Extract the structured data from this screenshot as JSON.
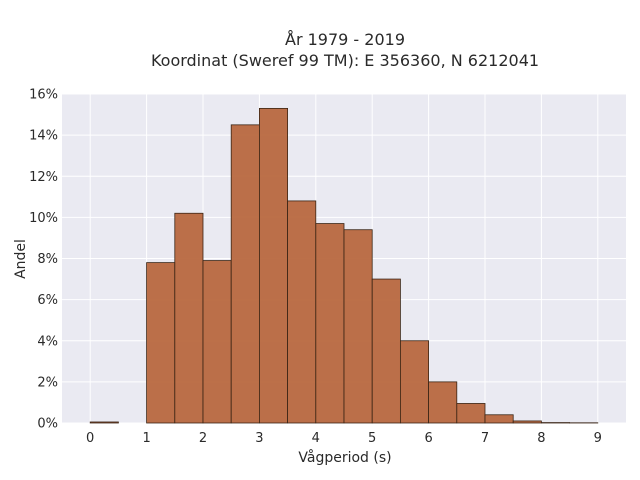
{
  "chart_data": {
    "type": "bar",
    "title_line1": "År 1979 - 2019",
    "title_line2": "Koordinat (Sweref 99 TM): E 356360, N 6212041",
    "xlabel": "Vågperiod (s)",
    "ylabel": "Andel",
    "bin_width": 0.5,
    "bins": [
      {
        "start": 0.0,
        "value": 0.05
      },
      {
        "start": 0.5,
        "value": 0.0
      },
      {
        "start": 1.0,
        "value": 7.8
      },
      {
        "start": 1.5,
        "value": 10.2
      },
      {
        "start": 2.0,
        "value": 7.9
      },
      {
        "start": 2.5,
        "value": 14.5
      },
      {
        "start": 3.0,
        "value": 15.3
      },
      {
        "start": 3.5,
        "value": 10.8
      },
      {
        "start": 4.0,
        "value": 9.7
      },
      {
        "start": 4.5,
        "value": 9.4
      },
      {
        "start": 5.0,
        "value": 7.0
      },
      {
        "start": 5.5,
        "value": 4.0
      },
      {
        "start": 6.0,
        "value": 2.0
      },
      {
        "start": 6.5,
        "value": 0.95
      },
      {
        "start": 7.0,
        "value": 0.4
      },
      {
        "start": 7.5,
        "value": 0.1
      },
      {
        "start": 8.0,
        "value": 0.02
      },
      {
        "start": 8.5,
        "value": 0.01
      }
    ],
    "xlim": [
      -0.5,
      9.5
    ],
    "ylim": [
      0,
      16
    ],
    "xticks": [
      0,
      1,
      2,
      3,
      4,
      5,
      6,
      7,
      8,
      9
    ],
    "yticks": [
      0,
      2,
      4,
      6,
      8,
      10,
      12,
      14,
      16
    ],
    "ytick_labels": [
      "0%",
      "2%",
      "4%",
      "6%",
      "8%",
      "10%",
      "12%",
      "14%",
      "16%"
    ],
    "grid": true,
    "colors": {
      "bar_fill": "#b8683f",
      "bar_edge": "#3a2414",
      "plot_bg": "#eaeaf2",
      "grid": "#ffffff"
    }
  }
}
